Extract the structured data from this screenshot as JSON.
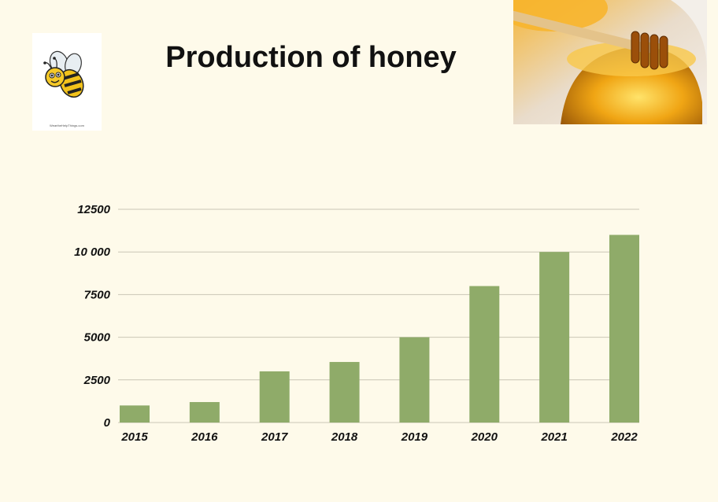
{
  "header": {
    "title": "Production of honey",
    "bee_credit": "WeartheHelpThings.com"
  },
  "images": {
    "bee": "bee-illustration",
    "honey": "honey-jar-with-dipper-photo"
  },
  "colors": {
    "background": "#fefaea",
    "bar": "#8fab69",
    "grid": "#c9c5b5"
  },
  "chart_data": {
    "type": "bar",
    "categories": [
      "2015",
      "2016",
      "2017",
      "2018",
      "2019",
      "2020",
      "2021",
      "2022"
    ],
    "values": [
      1000,
      1200,
      3000,
      3550,
      5000,
      8000,
      10000,
      11000
    ],
    "title": "",
    "xlabel": "",
    "ylabel": "",
    "ylim": [
      0,
      12500
    ],
    "yticks": [
      0,
      2500,
      5000,
      7500,
      10000,
      12500
    ],
    "ytick_labels": [
      "0",
      "2500",
      "5000",
      "7500",
      "10 000",
      "12500"
    ],
    "grid": true,
    "legend": "none"
  }
}
